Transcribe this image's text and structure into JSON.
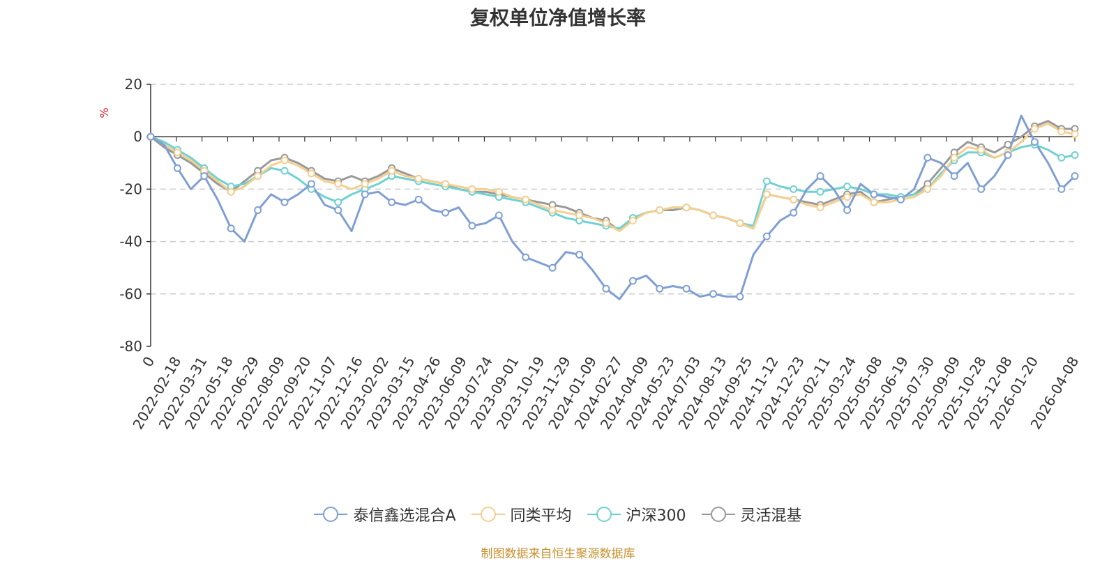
{
  "chart_data": {
    "type": "line",
    "title": "复权单位净值增长率",
    "ylabel": "%",
    "ylim": [
      -80,
      20
    ],
    "yticks": [
      20,
      0,
      -20,
      -40,
      -60,
      -80
    ],
    "grid": true,
    "legend_position": "bottom",
    "source_note": "制图数据来自恒生聚源数据库",
    "x_tick_labels": [
      "0",
      "2022-02-18",
      "2022-03-31",
      "2022-05-18",
      "2022-06-29",
      "2022-08-09",
      "2022-09-20",
      "2022-11-07",
      "2022-12-16",
      "2023-02-02",
      "2023-03-15",
      "2023-04-26",
      "2023-06-09",
      "2023-07-24",
      "2023-09-01",
      "2023-10-19",
      "2023-11-29",
      "2024-01-09",
      "2024-02-27",
      "2024-04-09",
      "2024-05-23",
      "2024-07-03",
      "2024-08-13",
      "2024-09-25",
      "2024-11-12",
      "2024-12-23",
      "2025-02-11",
      "2025-03-24",
      "2025-05-08",
      "2025-06-19",
      "2025-07-30",
      "2025-09-09",
      "2025-10-28",
      "2025-12-08",
      "2026-01-20",
      "2026-04-08"
    ],
    "series": [
      {
        "name": "泰信鑫选混合A",
        "color": "#7f9fd4",
        "values": [
          0,
          -3,
          -12,
          -20,
          -15,
          -24,
          -35,
          -40,
          -28,
          -22,
          -25,
          -22,
          -18,
          -26,
          -28,
          -36,
          -22,
          -21,
          -25,
          -26,
          -24,
          -28,
          -29,
          -27,
          -34,
          -33,
          -30,
          -40,
          -46,
          -48,
          -50,
          -44,
          -45,
          -51,
          -58,
          -62,
          -55,
          -53,
          -58,
          -57,
          -58,
          -61,
          -60,
          -61,
          -61,
          -45,
          -38,
          -32,
          -29,
          -20,
          -15,
          -20,
          -28,
          -18,
          -22,
          -23,
          -24,
          -20,
          -8,
          -10,
          -15,
          -10,
          -20,
          -15,
          -7,
          8,
          -2,
          -10,
          -20,
          -15
        ]
      },
      {
        "name": "同类平均",
        "color": "#f5cf8f",
        "values": [
          0,
          -3,
          -6,
          -9,
          -13,
          -17,
          -21,
          -19,
          -15,
          -11,
          -9,
          -11,
          -14,
          -17,
          -18,
          -20,
          -18,
          -16,
          -13,
          -15,
          -16,
          -17,
          -18,
          -19,
          -20,
          -20,
          -21,
          -23,
          -24,
          -26,
          -28,
          -29,
          -30,
          -31,
          -33,
          -36,
          -32,
          -29,
          -28,
          -27,
          -27,
          -28,
          -30,
          -31,
          -33,
          -35,
          -22,
          -23,
          -24,
          -26,
          -27,
          -25,
          -23,
          -22,
          -25,
          -25,
          -24,
          -23,
          -20,
          -15,
          -8,
          -4,
          -5,
          -8,
          -6,
          -2,
          3,
          5,
          2,
          1
        ]
      },
      {
        "name": "沪深300",
        "color": "#6fd1d1",
        "values": [
          0,
          -2,
          -5,
          -8,
          -12,
          -16,
          -19,
          -18,
          -15,
          -12,
          -13,
          -16,
          -20,
          -23,
          -25,
          -22,
          -20,
          -18,
          -15,
          -16,
          -17,
          -18,
          -19,
          -20,
          -21,
          -22,
          -23,
          -24,
          -25,
          -27,
          -29,
          -31,
          -32,
          -33,
          -34,
          -35,
          -31,
          -29,
          -28,
          -27,
          -27,
          -28,
          -30,
          -31,
          -33,
          -34,
          -17,
          -19,
          -20,
          -21,
          -21,
          -20,
          -19,
          -20,
          -22,
          -22,
          -23,
          -22,
          -20,
          -14,
          -9,
          -6,
          -6,
          -8,
          -6,
          -4,
          -3,
          -5,
          -8,
          -7
        ]
      },
      {
        "name": "灵活混基",
        "color": "#999999",
        "values": [
          0,
          -4,
          -7,
          -10,
          -14,
          -18,
          -21,
          -17,
          -13,
          -9,
          -8,
          -10,
          -13,
          -16,
          -17,
          -15,
          -17,
          -15,
          -12,
          -14,
          -16,
          -17,
          -18,
          -20,
          -21,
          -21,
          -22,
          -23,
          -24,
          -25,
          -26,
          -27,
          -29,
          -31,
          -32,
          -36,
          -31,
          -29,
          -28,
          -28,
          -27,
          -28,
          -30,
          -31,
          -33,
          -35,
          -22,
          -23,
          -24,
          -25,
          -26,
          -24,
          -22,
          -21,
          -25,
          -24,
          -23,
          -22,
          -18,
          -12,
          -6,
          -2,
          -4,
          -6,
          -3,
          0,
          4,
          6,
          3,
          3
        ]
      }
    ]
  }
}
